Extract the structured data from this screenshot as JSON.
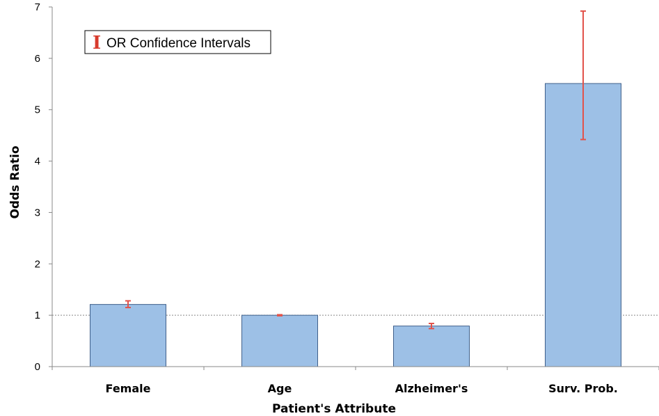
{
  "chart_data": {
    "type": "bar",
    "title": "",
    "xlabel": "Patient's Attribute",
    "ylabel": "Odds Ratio",
    "categories": [
      "Female",
      "Age",
      "Alzheimer's",
      "Surv. Prob."
    ],
    "values": [
      1.21,
      1.0,
      0.79,
      5.51
    ],
    "error_bars": {
      "lower": [
        1.15,
        0.99,
        0.74,
        4.42
      ],
      "upper": [
        1.28,
        1.01,
        0.84,
        6.92
      ]
    },
    "ylim": [
      0,
      7
    ],
    "yticks": [
      0,
      1,
      2,
      3,
      4,
      5,
      6,
      7
    ],
    "reference_line": 1,
    "grid": false,
    "legend": {
      "position": "top-left",
      "label": "OR Confidence Intervals",
      "glyph": "I"
    },
    "colors": {
      "bar_fill": "#9dc0e6",
      "bar_stroke": "#3f5f8a",
      "error_bar": "#e2524a",
      "legend_glyph": "#d83a2c",
      "axis": "#888888",
      "reference_line": "#888888"
    }
  }
}
